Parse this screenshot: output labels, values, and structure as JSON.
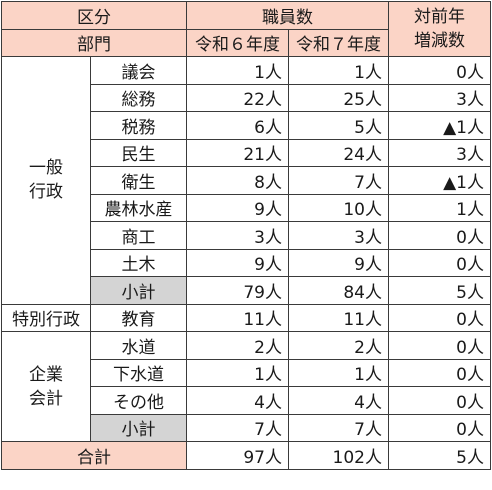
{
  "header": {
    "kubun": "区分",
    "bumon": "部門",
    "shokuin": "職員数",
    "r6": "令和６年度",
    "r7": "令和７年度",
    "change_l1": "対前年",
    "change_l2": "増減数"
  },
  "groups": {
    "ippan_l1": "一般",
    "ippan_l2": "行政",
    "tokubetsu": "特別行政",
    "kigyo_l1": "企業",
    "kigyo_l2": "会計"
  },
  "rows": [
    {
      "dept": "議会",
      "r6": "1人",
      "r7": "1人",
      "diff": "0人"
    },
    {
      "dept": "総務",
      "r6": "22人",
      "r7": "25人",
      "diff": "3人"
    },
    {
      "dept": "税務",
      "r6": "6人",
      "r7": "5人",
      "diff": "▲1人"
    },
    {
      "dept": "民生",
      "r6": "21人",
      "r7": "24人",
      "diff": "3人"
    },
    {
      "dept": "衛生",
      "r6": "8人",
      "r7": "7人",
      "diff": "▲1人"
    },
    {
      "dept": "農林水産",
      "r6": "9人",
      "r7": "10人",
      "diff": "1人"
    },
    {
      "dept": "商工",
      "r6": "3人",
      "r7": "3人",
      "diff": "0人"
    },
    {
      "dept": "土木",
      "r6": "9人",
      "r7": "9人",
      "diff": "0人"
    },
    {
      "dept": "小計",
      "r6": "79人",
      "r7": "84人",
      "diff": "5人"
    },
    {
      "dept": "教育",
      "r6": "11人",
      "r7": "11人",
      "diff": "0人"
    },
    {
      "dept": "水道",
      "r6": "2人",
      "r7": "2人",
      "diff": "0人"
    },
    {
      "dept": "下水道",
      "r6": "1人",
      "r7": "1人",
      "diff": "0人"
    },
    {
      "dept": "その他",
      "r6": "4人",
      "r7": "4人",
      "diff": "0人"
    },
    {
      "dept": "小計",
      "r6": "7人",
      "r7": "7人",
      "diff": "0人"
    }
  ],
  "total": {
    "label": "合計",
    "r6": "97人",
    "r7": "102人",
    "diff": "5人"
  }
}
